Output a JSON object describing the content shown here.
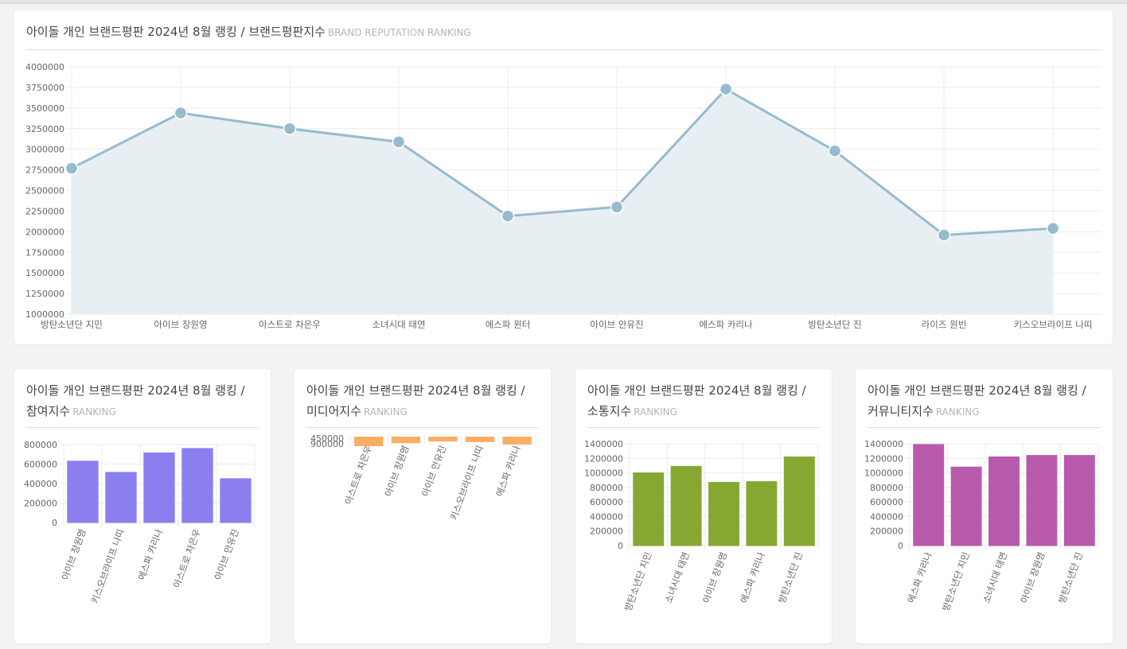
{
  "main_card": {
    "title": "아이돌 개인 브랜드평판 2024년 8월 랭킹 / 브랜드평판지수",
    "subtitle": "BRAND REPUTATION RANKING"
  },
  "small_cards": [
    {
      "title": "아이돌 개인 브랜드평판 2024년 8월 랭킹 / 참여지수",
      "subtitle": "RANKING"
    },
    {
      "title": "아이돌 개인 브랜드평판 2024년 8월 랭킹 / 미디어지수",
      "subtitle": "RANKING"
    },
    {
      "title": "아이돌 개인 브랜드평판 2024년 8월 랭킹 / 소통지수",
      "subtitle": "RANKING"
    },
    {
      "title": "아이돌 개인 브랜드평판 2024년 8월 랭킹 / 커뮤니티지수",
      "subtitle": "RANKING"
    }
  ],
  "chart_data": [
    {
      "type": "area",
      "categories": [
        "방탄소년단 지민",
        "아이브 장원영",
        "아스트로 차은우",
        "소녀시대 태연",
        "에스파 윈터",
        "아이브 안유진",
        "에스파 카리나",
        "방탄소년단 진",
        "라이즈 원빈",
        "키스오브라이프 나띠"
      ],
      "values": [
        2770000,
        3440000,
        3250000,
        3090000,
        2190000,
        2300000,
        3730000,
        2980000,
        1960000,
        2040000
      ],
      "ylim": [
        1000000,
        4000000
      ],
      "yticks": [
        1000000,
        1250000,
        1500000,
        1750000,
        2000000,
        2250000,
        2500000,
        2750000,
        3000000,
        3250000,
        3500000,
        3750000,
        4000000
      ],
      "grid": true,
      "color": "#97bbcd",
      "fill": "#e7eff3"
    },
    {
      "type": "bar",
      "categories": [
        "아이브 장원영",
        "키스오브라이프 나띠",
        "에스파 카리나",
        "아스트로 차은우",
        "아이브 안유진"
      ],
      "values": [
        630000,
        515000,
        715000,
        760000,
        450000
      ],
      "ylim": [
        0,
        800000
      ],
      "yticks": [
        0,
        200000,
        400000,
        600000,
        800000
      ],
      "grid": true,
      "color": "#8b7ff0"
    },
    {
      "type": "bar",
      "categories": [
        "아스트로 차은우",
        "아이브 장원영",
        "아이브 안유진",
        "키스오브라이프 나띠",
        "에스파 카리나"
      ],
      "values": [
        880000,
        600000,
        450000,
        510000,
        730000
      ],
      "yticks": [
        450000,
        900000
      ],
      "grid": true,
      "color": "#fbae63"
    },
    {
      "type": "bar",
      "categories": [
        "방탄소년단 지민",
        "소녀시대 태연",
        "아이브 장원영",
        "에스파 카리나",
        "방탄소년단 진"
      ],
      "values": [
        1000000,
        1090000,
        870000,
        880000,
        1220000
      ],
      "ylim": [
        0,
        1400000
      ],
      "yticks": [
        0,
        200000,
        400000,
        600000,
        800000,
        1000000,
        1200000,
        1400000
      ],
      "grid": true,
      "color": "#86a832"
    },
    {
      "type": "bar",
      "categories": [
        "에스파 카리나",
        "방탄소년단 지민",
        "소녀시대 태연",
        "아이브 장원영",
        "방탄소년단 진"
      ],
      "values": [
        1390000,
        1080000,
        1220000,
        1240000,
        1240000
      ],
      "ylim": [
        0,
        1400000
      ],
      "yticks": [
        0,
        200000,
        400000,
        600000,
        800000,
        1000000,
        1200000,
        1400000
      ],
      "grid": true,
      "color": "#b85aab"
    }
  ]
}
